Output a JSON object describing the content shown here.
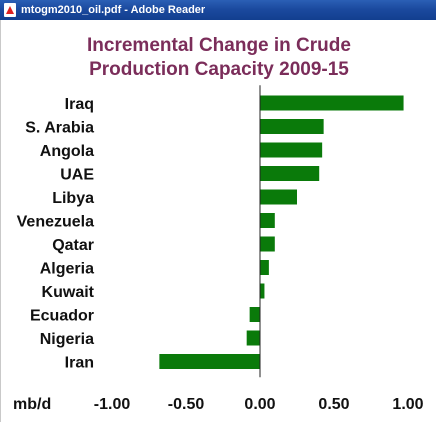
{
  "window": {
    "title": "mtogm2010_oil.pdf - Adobe Reader",
    "icon": "pdf-file-icon"
  },
  "chart_data": {
    "type": "bar",
    "orientation": "horizontal",
    "title_lines": [
      "Incremental Change in Crude",
      "Production Capacity 2009-15"
    ],
    "categories": [
      "Iraq",
      "S. Arabia",
      "Angola",
      "UAE",
      "Libya",
      "Venezuela",
      "Qatar",
      "Algeria",
      "Kuwait",
      "Ecuador",
      "Nigeria",
      "Iran"
    ],
    "values": [
      0.97,
      0.43,
      0.42,
      0.4,
      0.25,
      0.1,
      0.1,
      0.06,
      0.03,
      -0.07,
      -0.09,
      -0.68
    ],
    "unit_label": "mb/d",
    "xlim": [
      -1.0,
      1.0
    ],
    "xticks": [
      -1.0,
      -0.5,
      0.0,
      0.5,
      1.0
    ],
    "xtick_labels": [
      "-1.00",
      "-0.50",
      "0.00",
      "0.50",
      "1.00"
    ],
    "grid": false,
    "colors": {
      "bar": "#0a7a0a",
      "title": "#7b2d5a",
      "axis": "#222222"
    }
  }
}
